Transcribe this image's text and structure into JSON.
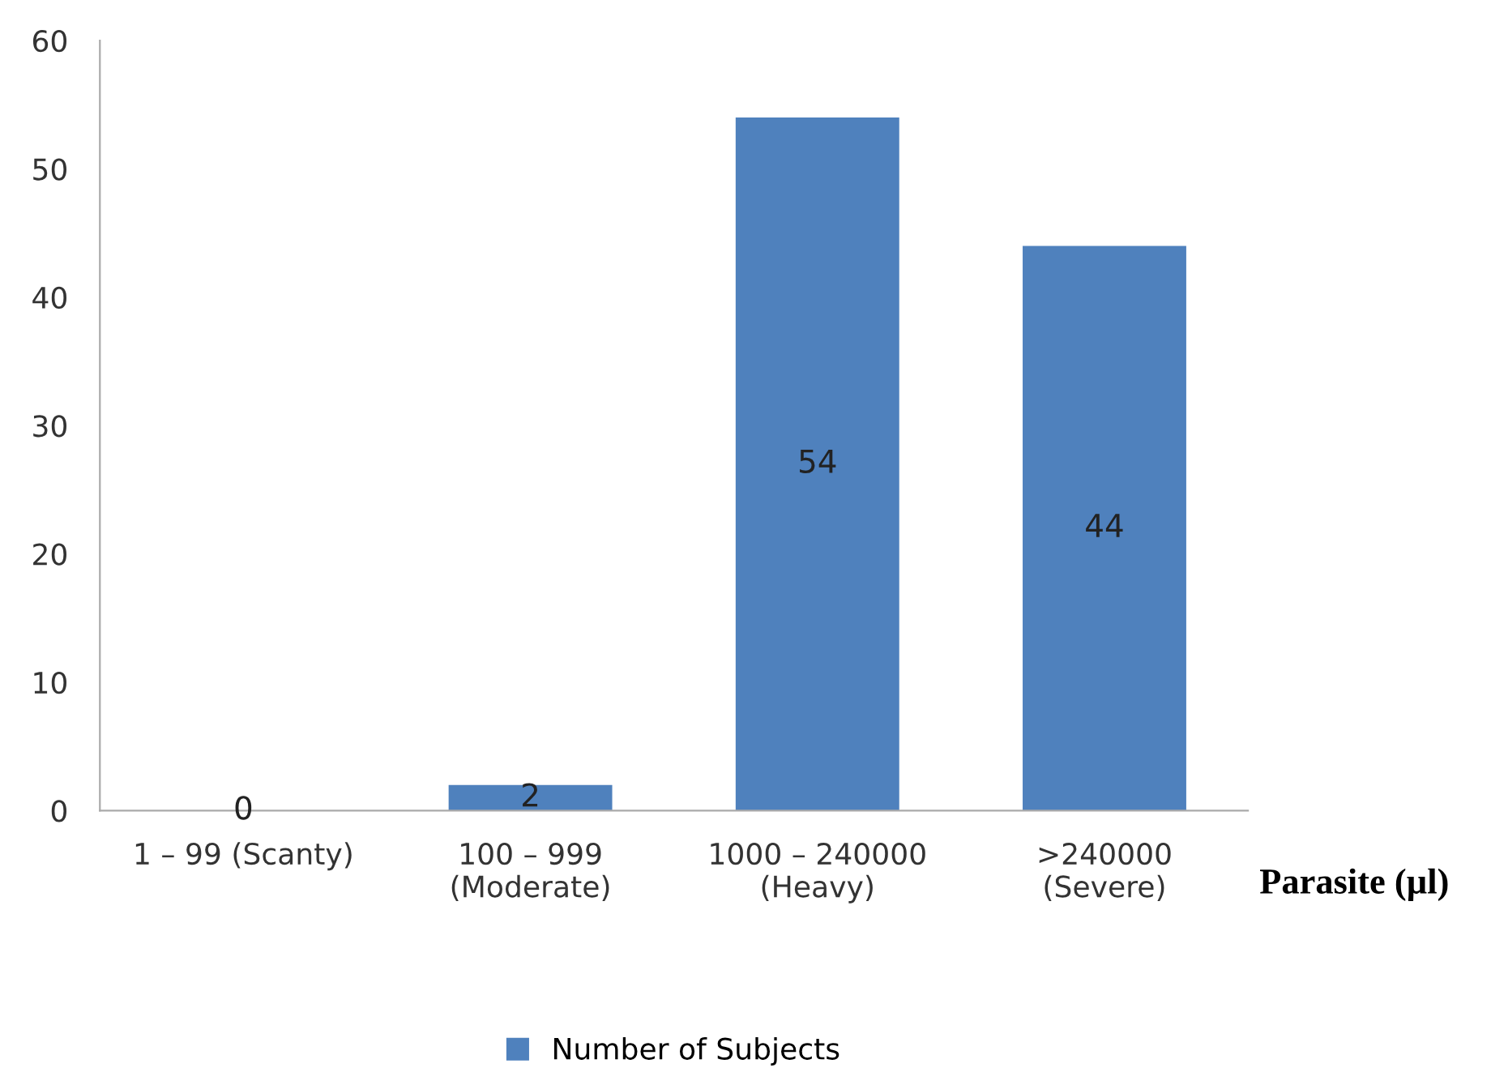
{
  "chart_data": {
    "type": "bar",
    "xlabel": "Parasite (µl)",
    "categories": [
      "1 – 99 (Scanty)",
      "100 – 999\n(Moderate)",
      "1000 – 240000\n(Heavy)",
      ">240000\n(Severe)"
    ],
    "series": [
      {
        "name": "Number of Subjects",
        "color": "#4f81bd",
        "values": [
          0,
          2,
          54,
          44
        ]
      }
    ],
    "ylim": [
      0,
      60
    ],
    "yticks": [
      0,
      10,
      20,
      30,
      40,
      50,
      60
    ],
    "grid": false,
    "legend": "bottom",
    "data_labels": true
  }
}
